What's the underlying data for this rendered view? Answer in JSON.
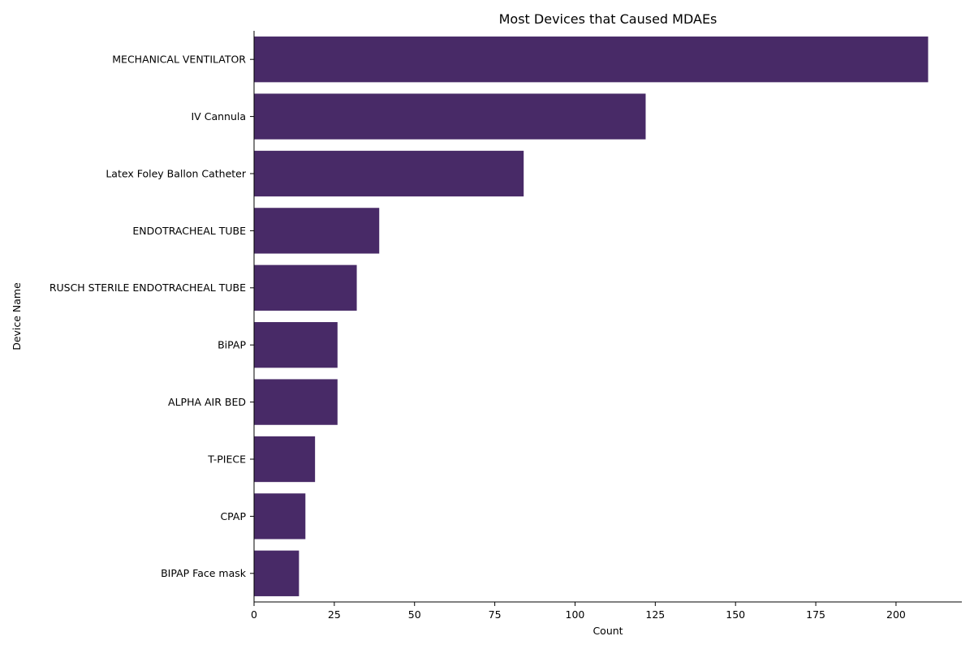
{
  "colors": {
    "bar": "#482a67",
    "axis": "#000000",
    "background": "#ffffff"
  },
  "chart_data": {
    "type": "bar",
    "orientation": "horizontal",
    "title": "Most Devices that Caused MDAEs",
    "xlabel": "Count",
    "ylabel": "Device Name",
    "categories": [
      "MECHANICAL VENTILATOR",
      "IV Cannula",
      "Latex Foley Ballon Catheter",
      "ENDOTRACHEAL TUBE ",
      "RUSCH STERILE ENDOTRACHEAL TUBE",
      "BiPAP",
      "ALPHA AIR BED",
      "T-PIECE",
      "CPAP",
      "BIPAP Face mask"
    ],
    "values": [
      210,
      122,
      84,
      39,
      32,
      26,
      26,
      19,
      16,
      14
    ],
    "xlim": [
      0,
      220.5
    ],
    "xticks": [
      0,
      25,
      50,
      75,
      100,
      125,
      150,
      175,
      200
    ],
    "xtick_labels": [
      "0",
      "25",
      "50",
      "75",
      "100",
      "125",
      "150",
      "175",
      "200"
    ],
    "grid": false,
    "legend": "none"
  }
}
